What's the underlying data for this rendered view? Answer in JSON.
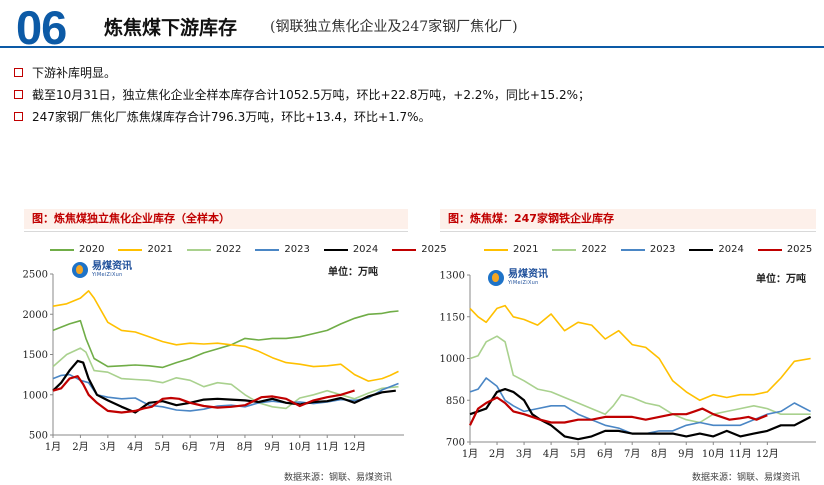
{
  "header": {
    "number": "06",
    "title": "炼焦煤下游库存",
    "subtitle": "(钢联独立焦化企业及247家钢厂焦化厂)"
  },
  "bullets": [
    "下游补库明显。",
    "截至10月31日，独立焦化企业全样本库存合计1052.5万吨，环比+22.8万吨，+2.2%，同比+15.2%；",
    "247家钢厂焦化厂炼焦煤库存合计796.3万吨，环比+13.4，环比+1.7%。"
  ],
  "logo": {
    "cn": "易煤资讯",
    "en": "YiMeiZiXun"
  },
  "colors": {
    "2020": "#70ad47",
    "2021": "#ffc000",
    "2022": "#a9d18e",
    "2023": "#4a86c5",
    "2024": "#000000",
    "2025": "#c00000",
    "accent": "#0c5aa6"
  },
  "chart_data": [
    {
      "type": "line",
      "title": "图：炼焦煤独立焦化企业库存（全样本）",
      "unit": "单位：万吨",
      "source": "数据来源：钢联、易煤资讯",
      "ylim": [
        500,
        2500
      ],
      "yticks": [
        500,
        1000,
        1500,
        2000,
        2500
      ],
      "xlim": [
        0,
        12.8
      ],
      "categories": [
        "1月",
        "2月",
        "3月",
        "4月",
        "5月",
        "6月",
        "7月",
        "8月",
        "9月",
        "10月",
        "11月",
        "12月"
      ],
      "series": [
        {
          "name": "2020",
          "x": [
            0,
            0.3,
            0.6,
            1.0,
            1.2,
            1.5,
            2.0,
            2.5,
            3.0,
            3.5,
            4.0,
            4.5,
            5.0,
            5.5,
            6.0,
            6.5,
            7.0,
            7.5,
            8.0,
            8.5,
            9.0,
            9.5,
            10.0,
            10.5,
            11.0,
            11.5,
            12.0,
            12.3,
            12.6
          ],
          "values": [
            1800,
            1840,
            1880,
            1920,
            1700,
            1450,
            1350,
            1360,
            1370,
            1360,
            1340,
            1400,
            1450,
            1520,
            1570,
            1620,
            1700,
            1680,
            1700,
            1700,
            1720,
            1760,
            1800,
            1880,
            1950,
            2000,
            2010,
            2030,
            2040
          ]
        },
        {
          "name": "2021",
          "x": [
            0,
            0.5,
            1.0,
            1.3,
            1.5,
            2.0,
            2.5,
            3.0,
            3.5,
            4.0,
            4.5,
            5.0,
            5.5,
            6.0,
            6.5,
            7.0,
            7.5,
            8.0,
            8.5,
            9.0,
            9.5,
            10.0,
            10.5,
            11.0,
            11.5,
            12.0,
            12.3,
            12.6
          ],
          "values": [
            2100,
            2130,
            2200,
            2290,
            2200,
            1900,
            1800,
            1780,
            1720,
            1660,
            1620,
            1640,
            1630,
            1640,
            1620,
            1600,
            1540,
            1460,
            1400,
            1380,
            1350,
            1360,
            1380,
            1250,
            1170,
            1200,
            1240,
            1290
          ]
        },
        {
          "name": "2022",
          "x": [
            0,
            0.5,
            1.0,
            1.2,
            1.5,
            2.0,
            2.5,
            3.0,
            3.5,
            4.0,
            4.5,
            5.0,
            5.5,
            6.0,
            6.5,
            7.0,
            7.5,
            8.0,
            8.5,
            9.0,
            9.5,
            10.0,
            10.5,
            11.0,
            11.5,
            12.0,
            12.6
          ],
          "values": [
            1350,
            1500,
            1580,
            1530,
            1300,
            1280,
            1200,
            1190,
            1180,
            1150,
            1210,
            1180,
            1100,
            1150,
            1130,
            1000,
            900,
            850,
            830,
            960,
            1000,
            1050,
            1000,
            950,
            1020,
            1080,
            1100
          ]
        },
        {
          "name": "2023",
          "x": [
            0,
            0.3,
            0.6,
            1.0,
            1.3,
            1.6,
            2.0,
            2.5,
            3.0,
            3.5,
            4.0,
            4.5,
            5.0,
            5.5,
            6.0,
            6.5,
            7.0,
            7.5,
            8.0,
            8.5,
            9.0,
            9.5,
            10.0,
            10.5,
            11.0,
            11.5,
            12.0,
            12.6
          ],
          "values": [
            1200,
            1240,
            1250,
            1180,
            1150,
            1000,
            970,
            950,
            960,
            870,
            850,
            810,
            800,
            820,
            860,
            870,
            850,
            900,
            920,
            900,
            910,
            890,
            910,
            940,
            930,
            960,
            1060,
            1140
          ]
        },
        {
          "name": "2024",
          "x": [
            0,
            0.3,
            0.6,
            0.9,
            1.1,
            1.3,
            1.6,
            2.0,
            2.5,
            3.0,
            3.5,
            4.0,
            4.5,
            5.0,
            5.5,
            6.0,
            6.5,
            7.0,
            7.5,
            8.0,
            8.5,
            9.0,
            9.5,
            10.0,
            10.5,
            11.0,
            11.5,
            12.0,
            12.5
          ],
          "values": [
            1050,
            1150,
            1300,
            1420,
            1400,
            1200,
            1000,
            930,
            850,
            780,
            900,
            920,
            870,
            900,
            940,
            950,
            940,
            930,
            910,
            950,
            900,
            880,
            910,
            920,
            960,
            900,
            980,
            1030,
            1050
          ]
        },
        {
          "name": "2025",
          "x": [
            0,
            0.3,
            0.6,
            0.9,
            1.1,
            1.3,
            1.6,
            2.0,
            2.5,
            3.0,
            3.3,
            3.6,
            4.0,
            4.3,
            4.6,
            5.0,
            5.5,
            6.0,
            6.5,
            7.0,
            7.3,
            7.6,
            8.0,
            8.5,
            9.0,
            9.5,
            10.0,
            10.5,
            11.0
          ],
          "values": [
            1050,
            1080,
            1200,
            1230,
            1130,
            1000,
            900,
            800,
            780,
            800,
            830,
            850,
            950,
            960,
            950,
            900,
            860,
            840,
            850,
            870,
            920,
            970,
            980,
            950,
            860,
            930,
            970,
            1000,
            1052.5
          ]
        }
      ]
    },
    {
      "type": "line",
      "title": "图：炼焦煤：247家钢铁企业库存",
      "unit": "单位：万吨",
      "source": "数据来源：钢联、易煤资讯",
      "ylim": [
        700,
        1300
      ],
      "yticks": [
        700,
        850,
        1000,
        1150,
        1300
      ],
      "xlim": [
        0,
        12.8
      ],
      "categories": [
        "1月",
        "2月",
        "3月",
        "4月",
        "5月",
        "6月",
        "7月",
        "8月",
        "9月",
        "10月",
        "11月",
        "12月"
      ],
      "series": [
        {
          "name": "2021",
          "x": [
            0,
            0.3,
            0.6,
            1.0,
            1.3,
            1.6,
            2.0,
            2.5,
            3.0,
            3.5,
            4.0,
            4.5,
            5.0,
            5.5,
            6.0,
            6.5,
            7.0,
            7.5,
            8.0,
            8.5,
            9.0,
            9.5,
            10.0,
            10.5,
            11.0,
            11.5,
            12.0,
            12.6
          ],
          "values": [
            1180,
            1150,
            1130,
            1180,
            1190,
            1150,
            1140,
            1120,
            1160,
            1100,
            1130,
            1120,
            1070,
            1100,
            1050,
            1040,
            1000,
            920,
            880,
            850,
            870,
            860,
            870,
            870,
            880,
            930,
            990,
            1000
          ]
        },
        {
          "name": "2022",
          "x": [
            0,
            0.3,
            0.6,
            1.0,
            1.3,
            1.6,
            2.0,
            2.5,
            3.0,
            3.5,
            4.0,
            4.5,
            5.0,
            5.3,
            5.6,
            6.0,
            6.5,
            7.0,
            7.5,
            8.0,
            8.5,
            9.0,
            9.5,
            10.0,
            10.5,
            11.0,
            11.5,
            12.0,
            12.6
          ],
          "values": [
            1000,
            1010,
            1060,
            1080,
            1060,
            940,
            920,
            890,
            880,
            860,
            840,
            820,
            800,
            830,
            870,
            860,
            840,
            830,
            800,
            780,
            770,
            800,
            810,
            820,
            830,
            820,
            800,
            800,
            800
          ]
        },
        {
          "name": "2023",
          "x": [
            0,
            0.3,
            0.6,
            1.0,
            1.3,
            1.6,
            2.0,
            2.5,
            3.0,
            3.5,
            4.0,
            4.5,
            5.0,
            5.5,
            6.0,
            6.5,
            7.0,
            7.5,
            8.0,
            8.5,
            9.0,
            9.5,
            10.0,
            10.5,
            11.0,
            11.5,
            12.0,
            12.6
          ],
          "values": [
            880,
            890,
            930,
            900,
            850,
            830,
            810,
            820,
            830,
            830,
            800,
            780,
            760,
            750,
            730,
            730,
            740,
            740,
            760,
            770,
            760,
            760,
            760,
            780,
            800,
            810,
            840,
            810
          ]
        },
        {
          "name": "2024",
          "x": [
            0,
            0.3,
            0.6,
            1.0,
            1.3,
            1.6,
            2.0,
            2.3,
            2.6,
            3.0,
            3.5,
            4.0,
            4.5,
            5.0,
            5.5,
            6.0,
            6.5,
            7.0,
            7.5,
            8.0,
            8.5,
            9.0,
            9.5,
            10.0,
            10.5,
            11.0,
            11.5,
            12.0,
            12.6
          ],
          "values": [
            800,
            810,
            820,
            880,
            890,
            880,
            850,
            800,
            780,
            760,
            720,
            710,
            720,
            740,
            740,
            730,
            730,
            730,
            730,
            720,
            730,
            720,
            740,
            720,
            730,
            740,
            760,
            760,
            790
          ]
        },
        {
          "name": "2025",
          "x": [
            0,
            0.3,
            0.6,
            1.0,
            1.3,
            1.6,
            2.0,
            2.3,
            2.6,
            3.0,
            3.5,
            4.0,
            4.5,
            5.0,
            5.5,
            6.0,
            6.5,
            7.0,
            7.5,
            8.0,
            8.3,
            8.6,
            9.0,
            9.3,
            9.6,
            10.0,
            10.3,
            10.6,
            11.0
          ],
          "values": [
            760,
            820,
            840,
            860,
            840,
            810,
            800,
            790,
            780,
            770,
            770,
            780,
            780,
            790,
            790,
            790,
            780,
            790,
            800,
            800,
            810,
            820,
            800,
            790,
            780,
            785,
            790,
            780,
            796.3
          ]
        }
      ]
    }
  ]
}
